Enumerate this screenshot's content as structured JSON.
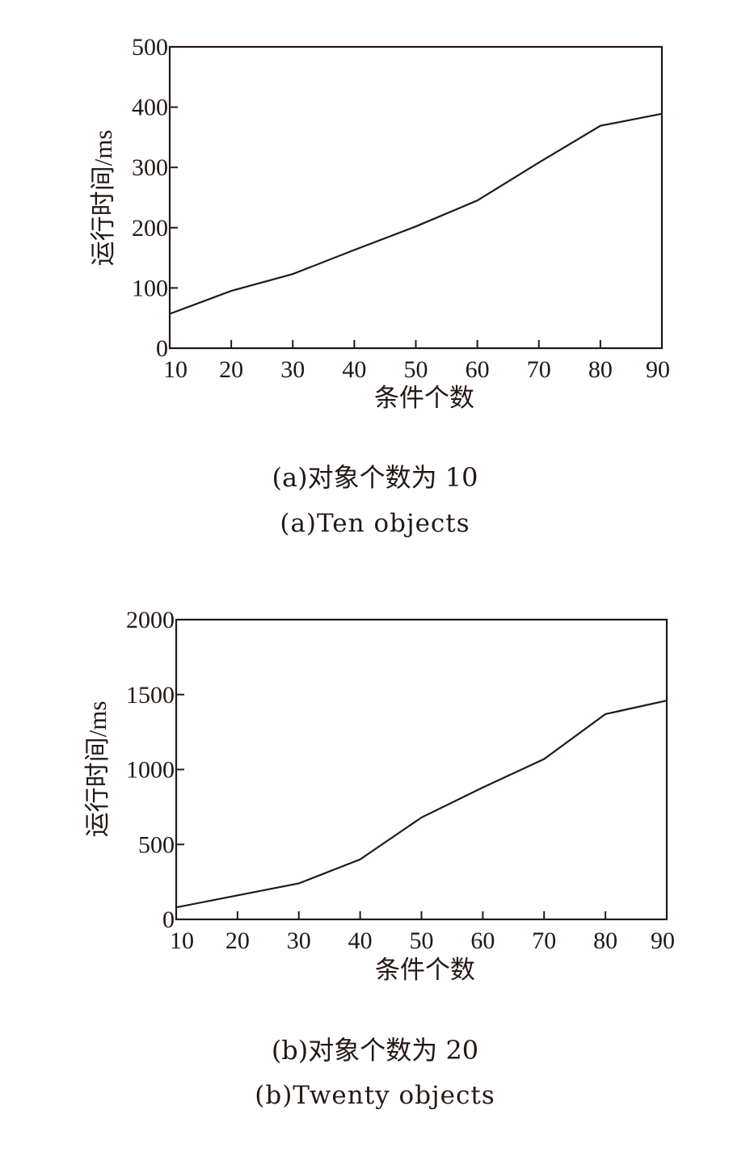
{
  "chart_data": [
    {
      "type": "line",
      "xlabel": "条件个数",
      "ylabel": "运行时间/ms",
      "x": [
        10,
        20,
        30,
        40,
        50,
        60,
        70,
        80,
        90
      ],
      "series": [
        {
          "values": [
            57,
            95,
            123,
            163,
            202,
            245,
            308,
            369,
            389
          ]
        }
      ],
      "xlim": [
        10,
        90
      ],
      "ylim": [
        0,
        500
      ],
      "xticks": [
        "10",
        "20",
        "30",
        "40",
        "50",
        "60",
        "70",
        "80",
        "90"
      ],
      "yticks": [
        "0",
        "100",
        "200",
        "300",
        "400",
        "500"
      ],
      "grid": false,
      "caption_cn": "(a)对象个数为 10",
      "caption_en": "(a)Ten objects"
    },
    {
      "type": "line",
      "xlabel": "条件个数",
      "ylabel": "运行时间/ms",
      "x": [
        10,
        20,
        30,
        40,
        50,
        60,
        70,
        80,
        90
      ],
      "series": [
        {
          "values": [
            80,
            160,
            240,
            400,
            680,
            880,
            1070,
            1370,
            1460
          ]
        }
      ],
      "xlim": [
        10,
        90
      ],
      "ylim": [
        0,
        2000
      ],
      "xticks": [
        "10",
        "20",
        "30",
        "40",
        "50",
        "60",
        "70",
        "80",
        "90"
      ],
      "yticks": [
        "0",
        "500",
        "1000",
        "1500",
        "2000"
      ],
      "grid": false,
      "caption_cn": "(b)对象个数为 20",
      "caption_en": "(b)Twenty objects"
    }
  ],
  "colors": {
    "ink": "#231815",
    "background": "#ffffff"
  }
}
